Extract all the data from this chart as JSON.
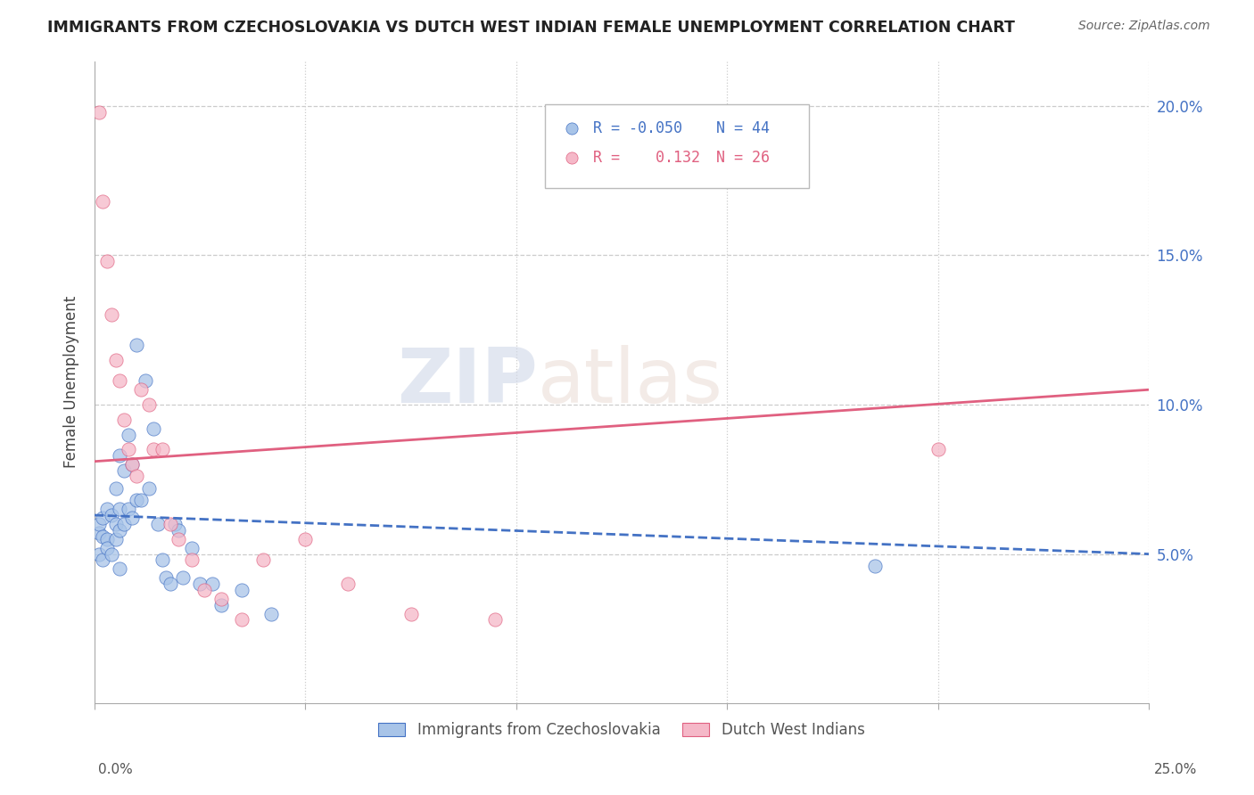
{
  "title": "IMMIGRANTS FROM CZECHOSLOVAKIA VS DUTCH WEST INDIAN FEMALE UNEMPLOYMENT CORRELATION CHART",
  "source": "Source: ZipAtlas.com",
  "ylabel": "Female Unemployment",
  "right_yticks": [
    0.05,
    0.1,
    0.15,
    0.2
  ],
  "right_yticklabels": [
    "5.0%",
    "10.0%",
    "15.0%",
    "20.0%"
  ],
  "xmin": 0.0,
  "xmax": 0.25,
  "ymin": 0.0,
  "ymax": 0.215,
  "legend_R1": "-0.050",
  "legend_N1": "44",
  "legend_R2": "0.132",
  "legend_N2": "26",
  "color_blue": "#A8C4E8",
  "color_pink": "#F5B8C8",
  "line_color_blue": "#4472C4",
  "line_color_pink": "#E06080",
  "watermark_zip": "ZIP",
  "watermark_atlas": "atlas",
  "blue_scatter_x": [
    0.001,
    0.001,
    0.001,
    0.002,
    0.002,
    0.002,
    0.003,
    0.003,
    0.003,
    0.004,
    0.004,
    0.005,
    0.005,
    0.005,
    0.006,
    0.006,
    0.006,
    0.006,
    0.007,
    0.007,
    0.008,
    0.008,
    0.009,
    0.009,
    0.01,
    0.01,
    0.011,
    0.012,
    0.013,
    0.014,
    0.015,
    0.016,
    0.017,
    0.018,
    0.019,
    0.02,
    0.021,
    0.023,
    0.025,
    0.028,
    0.03,
    0.035,
    0.042,
    0.185
  ],
  "blue_scatter_y": [
    0.057,
    0.06,
    0.05,
    0.062,
    0.056,
    0.048,
    0.065,
    0.055,
    0.052,
    0.063,
    0.05,
    0.072,
    0.06,
    0.055,
    0.083,
    0.065,
    0.058,
    0.045,
    0.078,
    0.06,
    0.09,
    0.065,
    0.08,
    0.062,
    0.12,
    0.068,
    0.068,
    0.108,
    0.072,
    0.092,
    0.06,
    0.048,
    0.042,
    0.04,
    0.06,
    0.058,
    0.042,
    0.052,
    0.04,
    0.04,
    0.033,
    0.038,
    0.03,
    0.046
  ],
  "pink_scatter_x": [
    0.001,
    0.002,
    0.003,
    0.004,
    0.005,
    0.006,
    0.007,
    0.008,
    0.009,
    0.01,
    0.011,
    0.013,
    0.014,
    0.016,
    0.018,
    0.02,
    0.023,
    0.026,
    0.03,
    0.035,
    0.04,
    0.05,
    0.06,
    0.075,
    0.095,
    0.2
  ],
  "pink_scatter_y": [
    0.198,
    0.168,
    0.148,
    0.13,
    0.115,
    0.108,
    0.095,
    0.085,
    0.08,
    0.076,
    0.105,
    0.1,
    0.085,
    0.085,
    0.06,
    0.055,
    0.048,
    0.038,
    0.035,
    0.028,
    0.048,
    0.055,
    0.04,
    0.03,
    0.028,
    0.085
  ],
  "blue_line_x": [
    0.0,
    0.25
  ],
  "blue_line_y_start": 0.063,
  "blue_line_y_end": 0.05,
  "pink_line_x": [
    0.0,
    0.25
  ],
  "pink_line_y_start": 0.081,
  "pink_line_y_end": 0.105
}
